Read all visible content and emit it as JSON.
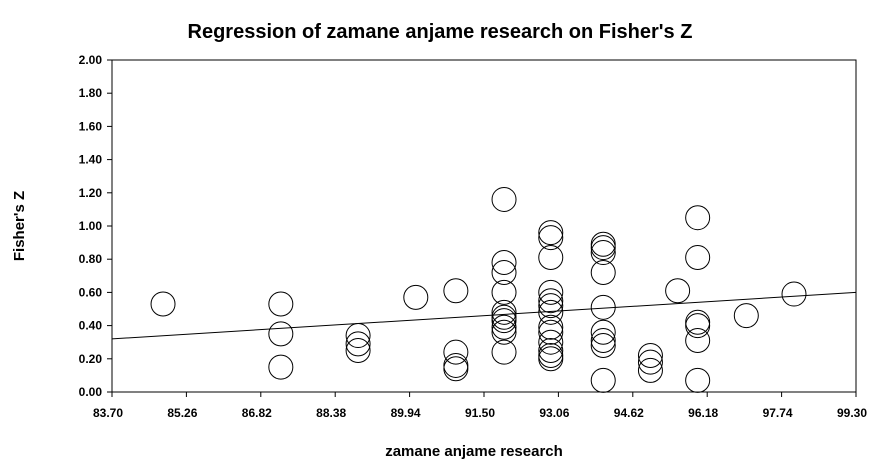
{
  "chart_data": {
    "type": "scatter",
    "title": "Regression of zamane anjame research on Fisher's Z",
    "x_label": "zamane anjame research",
    "y_label": "Fisher's Z",
    "x": [
      84.77,
      87.24,
      87.24,
      87.24,
      88.86,
      88.86,
      88.86,
      90.07,
      90.91,
      90.91,
      90.91,
      90.91,
      91.92,
      91.92,
      91.92,
      91.92,
      91.92,
      91.92,
      91.92,
      91.92,
      91.92,
      91.92,
      92.9,
      92.9,
      92.9,
      92.9,
      92.9,
      92.9,
      92.9,
      92.9,
      92.9,
      92.9,
      92.9,
      92.9,
      92.9,
      94.0,
      94.0,
      94.0,
      94.0,
      94.0,
      94.0,
      94.0,
      94.0,
      94.0,
      94.99,
      94.99,
      94.99,
      95.56,
      95.98,
      95.98,
      95.98,
      95.98,
      95.98,
      95.98,
      97.0,
      98.0
    ],
    "values": [
      0.53,
      0.53,
      0.35,
      0.15,
      0.34,
      0.29,
      0.25,
      0.57,
      0.61,
      0.24,
      0.14,
      0.16,
      1.16,
      0.78,
      0.72,
      0.6,
      0.48,
      0.43,
      0.45,
      0.36,
      0.24,
      0.39,
      0.96,
      0.93,
      0.81,
      0.6,
      0.55,
      0.52,
      0.48,
      0.39,
      0.36,
      0.3,
      0.25,
      0.22,
      0.2,
      0.89,
      0.87,
      0.84,
      0.72,
      0.51,
      0.36,
      0.31,
      0.28,
      0.07,
      0.22,
      0.18,
      0.13,
      0.61,
      1.05,
      0.81,
      0.42,
      0.4,
      0.31,
      0.07,
      0.46,
      0.59
    ],
    "trendline": {
      "x": [
        83.7,
        99.3
      ],
      "y": [
        0.32,
        0.6
      ]
    },
    "xlim": [
      83.7,
      99.3
    ],
    "xticks": [
      {
        "value": 83.7,
        "label": "83.70"
      },
      {
        "value": 85.26,
        "label": "85.26"
      },
      {
        "value": 86.82,
        "label": "86.82"
      },
      {
        "value": 88.38,
        "label": "88.38"
      },
      {
        "value": 89.94,
        "label": "89.94"
      },
      {
        "value": 91.5,
        "label": "91.50"
      },
      {
        "value": 93.06,
        "label": "93.06"
      },
      {
        "value": 94.62,
        "label": "94.62"
      },
      {
        "value": 96.18,
        "label": "96.18"
      },
      {
        "value": 97.74,
        "label": "97.74"
      },
      {
        "value": 99.3,
        "label": "99.30"
      }
    ],
    "ylim": [
      0,
      2
    ],
    "yticks": [
      {
        "value": 0,
        "label": "0.00"
      },
      {
        "value": 0.2,
        "label": "0.20"
      },
      {
        "value": 0.4,
        "label": "0.40"
      },
      {
        "value": 0.6,
        "label": "0.60"
      },
      {
        "value": 0.8,
        "label": "0.80"
      },
      {
        "value": 1,
        "label": "1.00"
      },
      {
        "value": 1.2,
        "label": "1.20"
      },
      {
        "value": 1.4,
        "label": "1.40"
      },
      {
        "value": 1.6,
        "label": "1.60"
      },
      {
        "value": 1.8,
        "label": "1.80"
      },
      {
        "value": 2,
        "label": "2.00"
      }
    ]
  }
}
